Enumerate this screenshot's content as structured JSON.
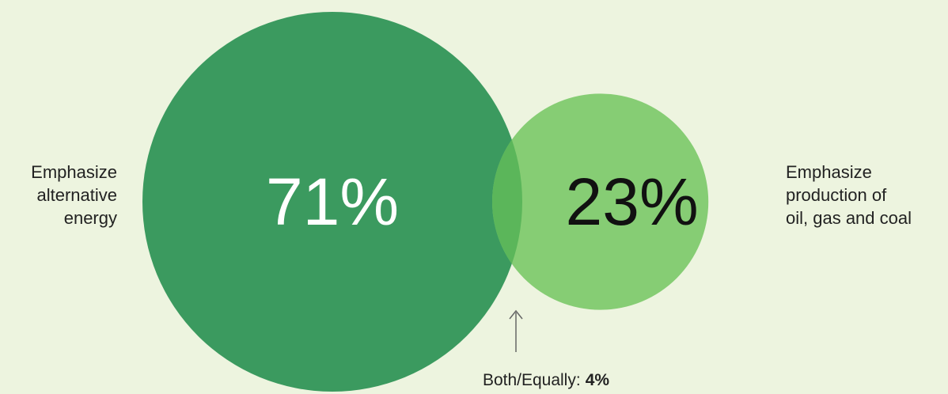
{
  "chart_data": {
    "type": "venn",
    "categories": [
      "Emphasize\nalternative\nenergy",
      "Emphasize\nproduction of\noil, gas and coal",
      "Both/Equally:"
    ],
    "values": [
      71,
      23,
      4
    ],
    "value_labels": [
      "71%",
      "23%",
      "4%"
    ],
    "colors": [
      "#3b9a5f",
      "#86cd74",
      "#5bb65a"
    ]
  }
}
